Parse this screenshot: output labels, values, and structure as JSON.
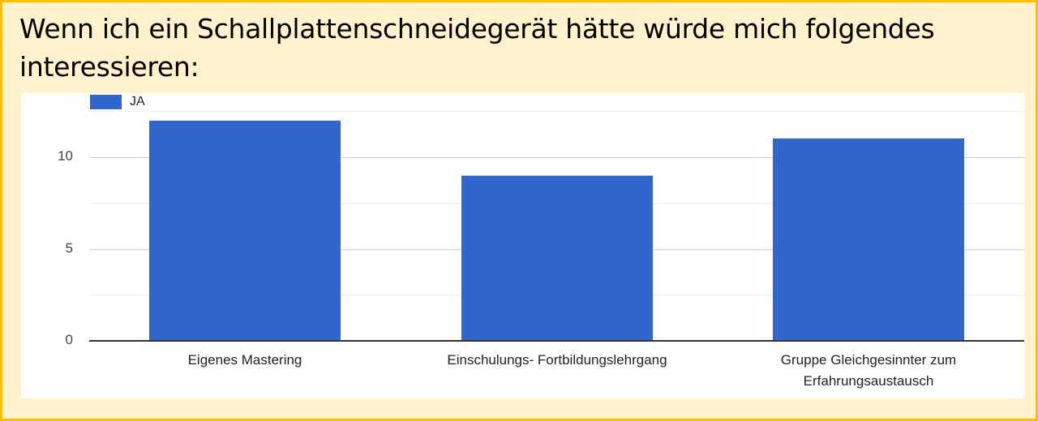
{
  "slide": {
    "title": "Wenn ich ein Schallplattenschneidegerät hätte würde mich folgendes interessieren:",
    "background_color": "#FFF2CC",
    "border_color": "#FFC000"
  },
  "chart_data": {
    "type": "bar",
    "title": "Wenn ich ein Schallplattenschneidegerät hätte würde mich folgendes interessieren:",
    "categories": [
      "Eigenes Mastering",
      "Einschulungs- Fortbildungslehrgang",
      "Gruppe Gleichgesinnter zum Erfahrungsaustausch"
    ],
    "category_lines": [
      [
        "Eigenes Mastering"
      ],
      [
        "Einschulungs- Fortbildungslehrgang"
      ],
      [
        "Gruppe Gleichgesinnter zum",
        "Erfahrungsaustausch"
      ]
    ],
    "series": [
      {
        "name": "JA",
        "color": "#3366CC",
        "values": [
          12,
          9,
          11
        ]
      }
    ],
    "xlabel": "",
    "ylabel": "",
    "ylim": [
      0,
      12.5
    ],
    "yticks": [
      0,
      5,
      10
    ],
    "minor_gridlines": [
      2.5,
      7.5,
      12.5
    ],
    "grid": true,
    "legend_position": "top-left"
  }
}
